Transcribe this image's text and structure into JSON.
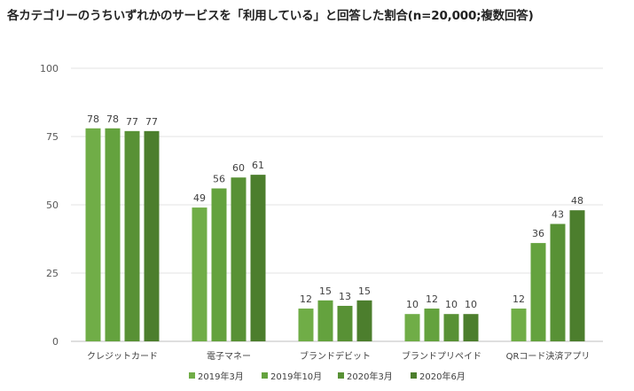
{
  "chart_data": {
    "type": "bar",
    "title": "各カテゴリーのうちいずれかのサービスを「利用している」と回答した割合(n=20,000;複数回答)",
    "categories": [
      "クレジットカード",
      "電子マネー",
      "ブランドデビット",
      "ブランドプリペイド",
      "QRコード決済アプリ"
    ],
    "series": [
      {
        "name": "2019年3月",
        "values": [
          78,
          49,
          12,
          10,
          12
        ],
        "color": "#70AD47"
      },
      {
        "name": "2019年10月",
        "values": [
          78,
          56,
          15,
          12,
          36
        ],
        "color": "#64A23E"
      },
      {
        "name": "2020年3月",
        "values": [
          77,
          60,
          13,
          10,
          43
        ],
        "color": "#589135"
      },
      {
        "name": "2020年6月",
        "values": [
          77,
          61,
          15,
          10,
          48
        ],
        "color": "#4C7E2D"
      }
    ],
    "ylim": [
      0,
      100
    ],
    "yticks": [
      0,
      25,
      50,
      75,
      100
    ],
    "grid": true,
    "legend": "bottom"
  }
}
